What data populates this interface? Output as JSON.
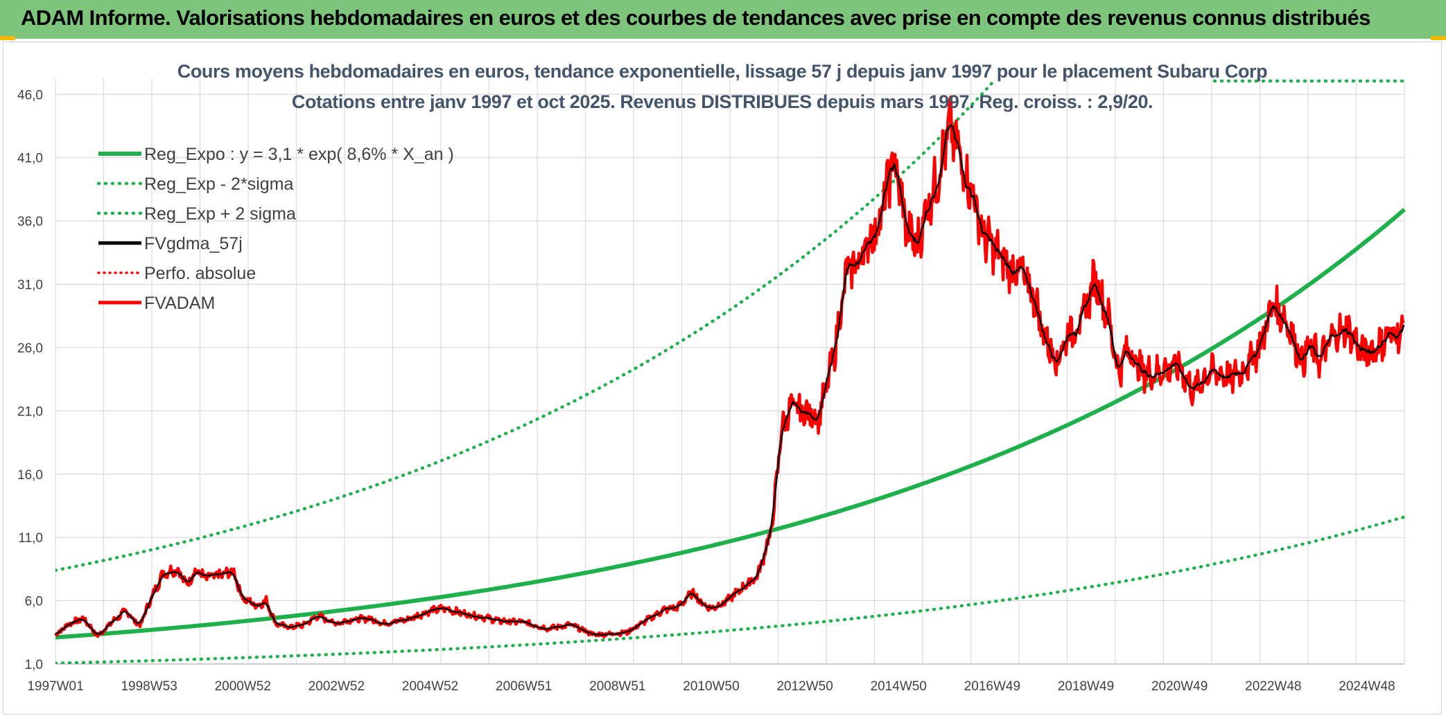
{
  "header": {
    "title": "ADAM Informe. Valorisations hebdomadaires en euros et des courbes de tendances avec prise en compte des revenus connus distribués"
  },
  "colors": {
    "banner": "#7dc57a",
    "reg_expo": "#1db04b",
    "sigma": "#1db04b",
    "fvgdma": "#000000",
    "fvadam": "#ff0000",
    "perfo": "#ff0000"
  },
  "chart_data": {
    "type": "line",
    "title": "Cours moyens hebdomadaires en euros, tendance exponentielle, lissage 57 j depuis janv 1997 pour le placement Subaru Corp",
    "subtitle": "Cotations entre janv 1997 et oct 2025. Revenus DISTRIBUES depuis mars 1997. Reg. croiss. : 2,9/20.",
    "x_ticks": [
      "1997W01",
      "1998W53",
      "2000W52",
      "2002W52",
      "2004W52",
      "2006W51",
      "2008W51",
      "2010W50",
      "2012W50",
      "2014W50",
      "2016W49",
      "2018W49",
      "2020W49",
      "2022W48",
      "2024W48"
    ],
    "x_range": [
      1997.0,
      2025.8
    ],
    "y_ticks": [
      "1,0",
      "6,0",
      "11,0",
      "16,0",
      "21,0",
      "26,0",
      "31,0",
      "36,0",
      "41,0",
      "46,0"
    ],
    "ylim": [
      1,
      47
    ],
    "grid": true,
    "legend_position": "top-left",
    "legend": [
      {
        "label": "Reg_Expo : y = 3,1 * exp( 8,6% *  X_an )",
        "style": "solid-green-thick"
      },
      {
        "label": "Reg_Exp - 2*sigma",
        "style": "dotted-green"
      },
      {
        "label": "Reg_Exp + 2 sigma",
        "style": "dotted-green"
      },
      {
        "label": "FVgdma_57j",
        "style": "solid-black"
      },
      {
        "label": "Perfo. absolue",
        "style": "dotted-red"
      },
      {
        "label": "FVADAM",
        "style": "solid-red"
      }
    ],
    "series": [
      {
        "name": "Reg_Expo : y = 3,1 * exp( 8,6% *  X_an )",
        "type": "formula",
        "a": 3.1,
        "rate": 0.086,
        "x0": 1997.0
      },
      {
        "name": "Reg_Exp - 2*sigma",
        "type": "formula",
        "a": 1.06,
        "rate": 0.086,
        "x0": 1997.0
      },
      {
        "name": "Reg_Exp + 2 sigma",
        "type": "formula",
        "a": 8.4,
        "rate": 0.086,
        "x0": 1997.0
      },
      {
        "name": "FVADAM",
        "x": [
          1997.0,
          1997.3,
          1997.6,
          1997.9,
          1998.2,
          1998.5,
          1998.8,
          1999.0,
          1999.3,
          1999.6,
          1999.8,
          2000.0,
          2000.2,
          2000.5,
          2000.8,
          2001.0,
          2001.3,
          2001.5,
          2001.7,
          2002.0,
          2002.3,
          2002.6,
          2003.0,
          2003.3,
          2003.7,
          2004.0,
          2004.5,
          2005.0,
          2005.3,
          2005.7,
          2006.0,
          2006.5,
          2007.0,
          2007.5,
          2008.0,
          2008.5,
          2008.9,
          2009.2,
          2009.6,
          2010.0,
          2010.3,
          2010.6,
          2010.8,
          2011.0,
          2011.3,
          2011.6,
          2012.0,
          2012.3,
          2012.5,
          2012.7,
          2012.9,
          2013.1,
          2013.3,
          2013.6,
          2013.9,
          2014.1,
          2014.3,
          2014.6,
          2014.9,
          2015.2,
          2015.4,
          2015.6,
          2015.8,
          2016.1,
          2016.4,
          2016.6,
          2016.8,
          2017.0,
          2017.3,
          2017.6,
          2017.9,
          2018.1,
          2018.4,
          2018.6,
          2018.9,
          2019.2,
          2019.5,
          2019.7,
          2019.9,
          2020.2,
          2020.5,
          2020.8,
          2021.0,
          2021.3,
          2021.6,
          2021.9,
          2022.1,
          2022.4,
          2022.7,
          2023.0,
          2023.3,
          2023.6,
          2023.8,
          2024.0,
          2024.3,
          2024.6,
          2024.9,
          2025.2,
          2025.5,
          2025.8
        ],
        "y": [
          3.3,
          4.2,
          4.6,
          3.2,
          4.3,
          5.2,
          4.0,
          5.8,
          8.2,
          8.5,
          7.3,
          8.4,
          7.8,
          8.0,
          8.3,
          6.2,
          5.6,
          6.0,
          4.2,
          3.9,
          4.1,
          4.8,
          4.2,
          4.5,
          4.6,
          4.2,
          4.5,
          5.2,
          5.4,
          5.0,
          4.8,
          4.4,
          4.3,
          3.8,
          4.1,
          3.3,
          3.4,
          3.5,
          4.4,
          5.3,
          5.5,
          6.7,
          5.8,
          5.4,
          5.9,
          6.8,
          8.0,
          11.8,
          19.5,
          21.3,
          21.0,
          20.8,
          20.5,
          25.0,
          32.0,
          32.5,
          34.0,
          36.0,
          41.0,
          35.0,
          34.0,
          37.0,
          39.0,
          43.5,
          40.0,
          38.0,
          35.0,
          34.0,
          32.5,
          32.0,
          30.0,
          27.0,
          25.0,
          27.0,
          28.0,
          31.5,
          28.0,
          24.0,
          26.0,
          24.0,
          24.0,
          24.5,
          24.5,
          22.5,
          24.0,
          24.0,
          23.5,
          24.5,
          26.0,
          29.5,
          28.0,
          25.0,
          26.0,
          25.0,
          27.0,
          27.5,
          25.5,
          26.0,
          27.0,
          27.3
        ]
      },
      {
        "name": "FVgdma_57j",
        "type": "smoothed_of_FVADAM"
      }
    ]
  }
}
